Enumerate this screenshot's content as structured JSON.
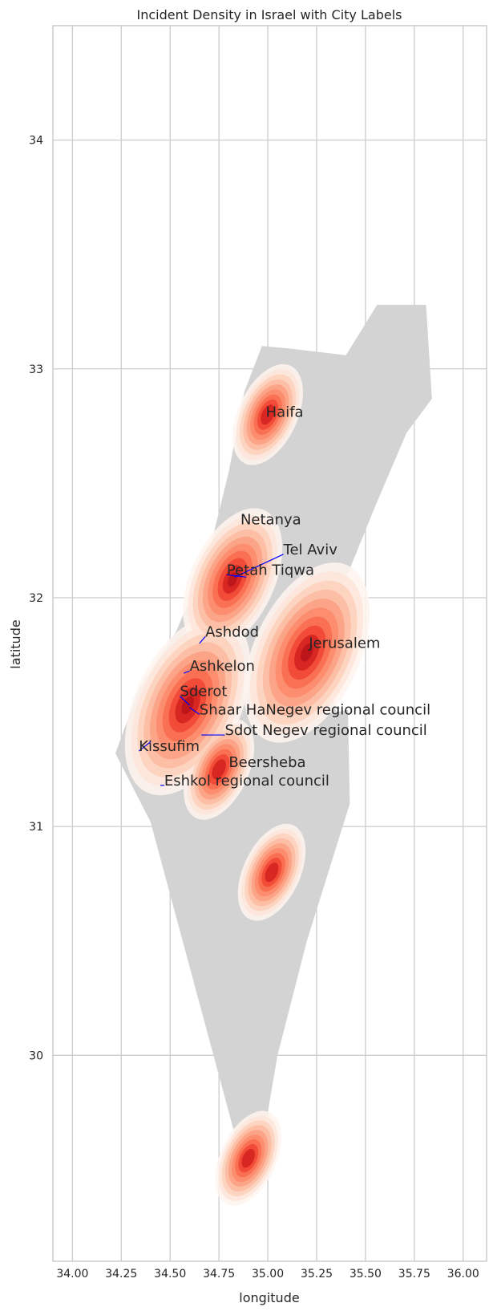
{
  "chart_data": {
    "type": "heatmap",
    "title": "Incident Density in Israel with City Labels",
    "xlabel": "longitude",
    "ylabel": "latitude",
    "xlim": [
      33.9,
      36.12
    ],
    "ylim": [
      29.1,
      34.5
    ],
    "xticks": [
      {
        "value": 34.0,
        "label": "34.00"
      },
      {
        "value": 34.25,
        "label": "34.25"
      },
      {
        "value": 34.5,
        "label": "34.50"
      },
      {
        "value": 34.75,
        "label": "34.75"
      },
      {
        "value": 35.0,
        "label": "35.00"
      },
      {
        "value": 35.25,
        "label": "35.25"
      },
      {
        "value": 35.5,
        "label": "35.50"
      },
      {
        "value": 35.75,
        "label": "35.75"
      },
      {
        "value": 36.0,
        "label": "36.00"
      }
    ],
    "yticks": [
      {
        "value": 30,
        "label": "30"
      },
      {
        "value": 31,
        "label": "31"
      },
      {
        "value": 32,
        "label": "32"
      },
      {
        "value": 33,
        "label": "33"
      },
      {
        "value": 34,
        "label": "34"
      }
    ],
    "grid": true,
    "colors": {
      "country_fill": "#d3d3d3",
      "density_palette": [
        "#fff5f0",
        "#fee5d9",
        "#fcd0bb",
        "#fcbba1",
        "#fc9f81",
        "#fc8a6a",
        "#f86b4f",
        "#f14432",
        "#d42020",
        "#b81419"
      ],
      "connector": "#0000ff",
      "grid": "#cccccc",
      "text": "#262626"
    },
    "country_outline": [
      [
        34.88,
        29.5
      ],
      [
        34.4,
        31.02
      ],
      [
        34.22,
        31.32
      ],
      [
        34.34,
        31.6
      ],
      [
        34.53,
        31.85
      ],
      [
        34.7,
        32.2
      ],
      [
        34.8,
        32.55
      ],
      [
        34.88,
        32.9
      ],
      [
        34.97,
        33.1
      ],
      [
        35.1,
        33.09
      ],
      [
        35.4,
        33.06
      ],
      [
        35.56,
        33.28
      ],
      [
        35.81,
        33.28
      ],
      [
        35.84,
        32.87
      ],
      [
        35.71,
        32.72
      ],
      [
        35.55,
        32.4
      ],
      [
        35.36,
        32.0
      ],
      [
        35.3,
        31.7
      ],
      [
        35.35,
        31.5
      ],
      [
        35.41,
        31.51
      ],
      [
        35.42,
        31.1
      ],
      [
        35.2,
        30.5
      ],
      [
        35.05,
        30.0
      ],
      [
        34.96,
        29.55
      ]
    ],
    "density_peaks": [
      {
        "lon": 34.59,
        "lat": 31.53,
        "weight": 1.0
      },
      {
        "lon": 35.2,
        "lat": 31.76,
        "weight": 1.0
      },
      {
        "lon": 34.82,
        "lat": 32.08,
        "weight": 0.62
      },
      {
        "lon": 35.0,
        "lat": 32.8,
        "weight": 0.2
      },
      {
        "lon": 34.75,
        "lat": 31.25,
        "weight": 0.2
      },
      {
        "lon": 35.02,
        "lat": 30.8,
        "weight": 0.16
      },
      {
        "lon": 34.9,
        "lat": 29.55,
        "weight": 0.14
      }
    ],
    "cities": [
      {
        "name": "Haifa",
        "lon": 34.99,
        "lat": 32.79,
        "label_lon": 34.99,
        "label_lat": 32.79
      },
      {
        "name": "Netanya",
        "lon": 34.86,
        "lat": 32.32,
        "label_lon": 34.86,
        "label_lat": 32.32
      },
      {
        "name": "Tel Aviv",
        "lon": 34.83,
        "lat": 32.09,
        "label_lon": 35.08,
        "label_lat": 32.19
      },
      {
        "name": "Petah Tiqwa",
        "lon": 34.89,
        "lat": 32.09,
        "label_lon": 34.79,
        "label_lat": 32.1
      },
      {
        "name": "Ashdod",
        "lon": 34.65,
        "lat": 31.8,
        "label_lon": 34.68,
        "label_lat": 31.83
      },
      {
        "name": "Jerusalem",
        "lon": 35.22,
        "lat": 31.78,
        "label_lon": 35.21,
        "label_lat": 31.78
      },
      {
        "name": "Ashkelon",
        "lon": 34.57,
        "lat": 31.67,
        "label_lon": 34.6,
        "label_lat": 31.68
      },
      {
        "name": "Sderot",
        "lon": 34.6,
        "lat": 31.53,
        "label_lon": 34.55,
        "label_lat": 31.57
      },
      {
        "name": "Shaar HaNegev regional council",
        "lon": 34.6,
        "lat": 31.52,
        "label_lon": 34.65,
        "label_lat": 31.49
      },
      {
        "name": "Sdot Negev regional council",
        "lon": 34.66,
        "lat": 31.4,
        "label_lon": 34.78,
        "label_lat": 31.4
      },
      {
        "name": "Kissufim",
        "lon": 34.4,
        "lat": 31.37,
        "label_lon": 34.34,
        "label_lat": 31.33
      },
      {
        "name": "Beersheba",
        "lon": 34.79,
        "lat": 31.25,
        "label_lon": 34.8,
        "label_lat": 31.26
      },
      {
        "name": "Eshkol regional council",
        "lon": 34.45,
        "lat": 31.18,
        "label_lon": 34.47,
        "label_lat": 31.18
      }
    ]
  }
}
